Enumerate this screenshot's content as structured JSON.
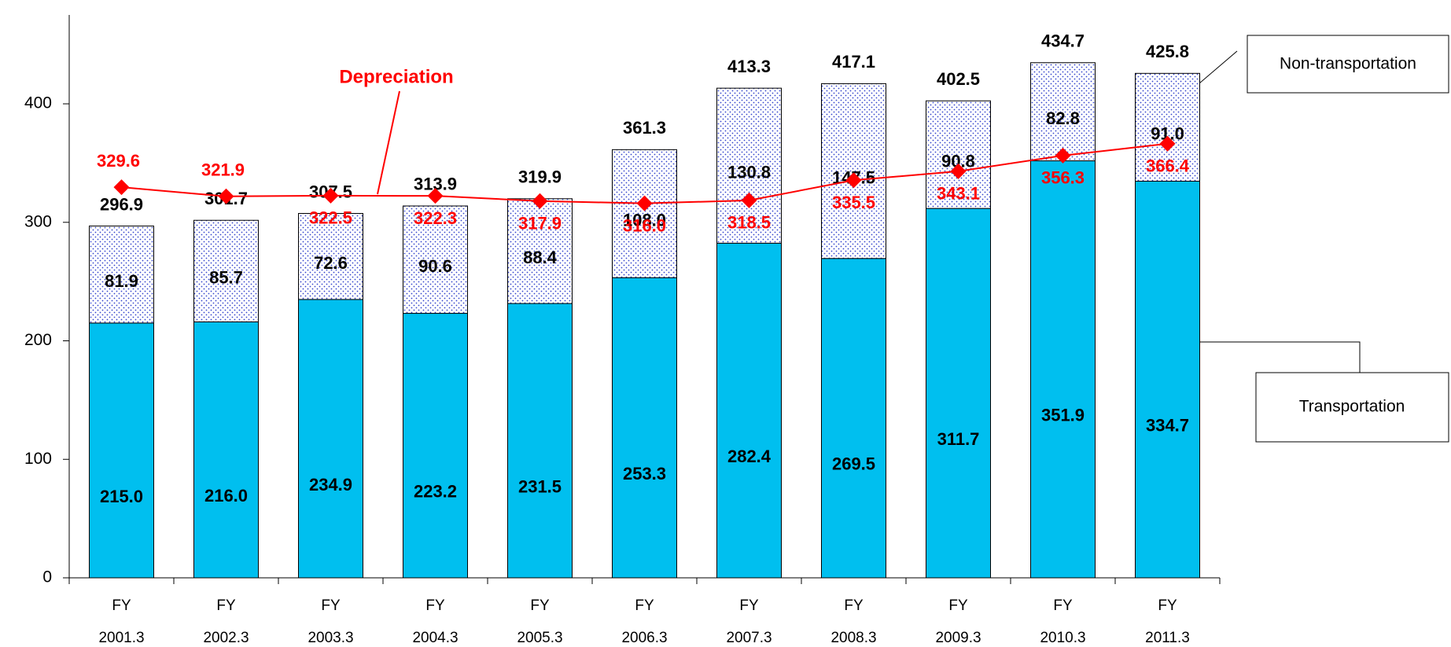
{
  "chart_data": {
    "type": "stacked_bar_line",
    "categories": [
      [
        "FY",
        "2001.3"
      ],
      [
        "FY",
        "2002.3"
      ],
      [
        "FY",
        "2003.3"
      ],
      [
        "FY",
        "2004.3"
      ],
      [
        "FY",
        "2005.3"
      ],
      [
        "FY",
        "2006.3"
      ],
      [
        "FY",
        "2007.3"
      ],
      [
        "FY",
        "2008.3"
      ],
      [
        "FY",
        "2009.3"
      ],
      [
        "FY",
        "2010.3"
      ],
      [
        "FY",
        "2011.3"
      ]
    ],
    "series": [
      {
        "name": "Transportation",
        "color": "#00bfef",
        "values": [
          215.0,
          216.0,
          234.9,
          223.2,
          231.5,
          253.3,
          282.4,
          269.5,
          311.7,
          351.9,
          334.7
        ],
        "value_labels": [
          "215.0",
          "216.0",
          "234.9",
          "223.2",
          "231.5",
          "253.3",
          "282.4",
          "269.5",
          "311.7",
          "351.9",
          "334.7"
        ]
      },
      {
        "name": "Non-transportation",
        "color": "#3344cc",
        "values": [
          81.9,
          85.7,
          72.6,
          90.6,
          88.4,
          108.0,
          130.8,
          147.5,
          90.8,
          82.8,
          91.0
        ],
        "value_labels": [
          "81.9",
          "85.7",
          "72.6",
          "90.6",
          "88.4",
          "108.0",
          "130.8",
          "147.5",
          "90.8",
          "82.8",
          "91.0"
        ]
      },
      {
        "name": "Depreciation",
        "color": "#ff0000",
        "type": "line",
        "values": [
          329.6,
          321.9,
          322.5,
          322.3,
          317.9,
          316.0,
          318.5,
          335.5,
          343.1,
          356.3,
          366.4
        ],
        "value_labels": [
          "329.6",
          "321.9",
          "322.5",
          "322.3",
          "317.9",
          "316.0",
          "318.5",
          "335.5",
          "343.1",
          "356.3",
          "366.4"
        ]
      }
    ],
    "totals": [
      296.9,
      301.7,
      307.5,
      313.9,
      319.9,
      361.3,
      413.3,
      417.1,
      402.5,
      434.7,
      425.8
    ],
    "total_labels": [
      "296.9",
      "301.7",
      "307.5",
      "313.9",
      "319.9",
      "361.3",
      "413.3",
      "417.1",
      "402.5",
      "434.7",
      "425.8"
    ],
    "ylim": [
      0,
      475
    ],
    "yticks": [
      0,
      100,
      200,
      300,
      400
    ]
  }
}
